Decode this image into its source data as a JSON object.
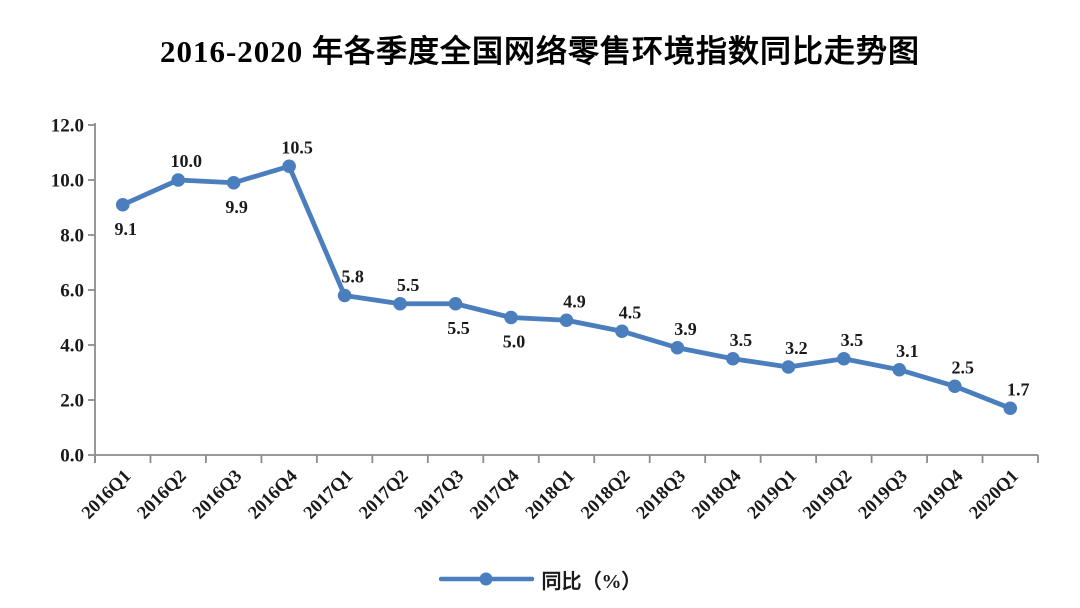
{
  "title": "2016-2020 年各季度全国网络零售环境指数同比走势图",
  "legend": {
    "label": "同比（%）"
  },
  "colors": {
    "line": "#4a7ebd",
    "axis": "#8c8c8c",
    "text": "#1a1a1a",
    "background": "#ffffff"
  },
  "chart_data": {
    "type": "line",
    "title": "2016-2020 年各季度全国网络零售环境指数同比走势图",
    "categories": [
      "2016Q1",
      "2016Q2",
      "2016Q3",
      "2016Q4",
      "2017Q1",
      "2017Q2",
      "2017Q3",
      "2017Q4",
      "2018Q1",
      "2018Q2",
      "2018Q3",
      "2018Q4",
      "2019Q1",
      "2019Q2",
      "2019Q3",
      "2019Q4",
      "2020Q1"
    ],
    "series": [
      {
        "name": "同比（%）",
        "values": [
          9.1,
          10.0,
          9.9,
          10.5,
          5.8,
          5.5,
          5.5,
          5.0,
          4.9,
          4.5,
          3.9,
          3.5,
          3.2,
          3.5,
          3.1,
          2.5,
          1.7
        ]
      }
    ],
    "data_label_positions": [
      "below",
      "above",
      "below",
      "above",
      "above",
      "above",
      "below",
      "below",
      "above",
      "above",
      "above",
      "above",
      "above",
      "above",
      "above",
      "above",
      "above"
    ],
    "show_data_labels": true,
    "xlabel": "",
    "ylabel": "",
    "ylim": [
      0,
      12
    ],
    "ytick_step": 2,
    "ytick_labels": [
      "0.0",
      "2.0",
      "4.0",
      "6.0",
      "8.0",
      "10.0",
      "12.0"
    ],
    "grid": false,
    "marker": "circle",
    "legend_position": "bottom-center"
  }
}
